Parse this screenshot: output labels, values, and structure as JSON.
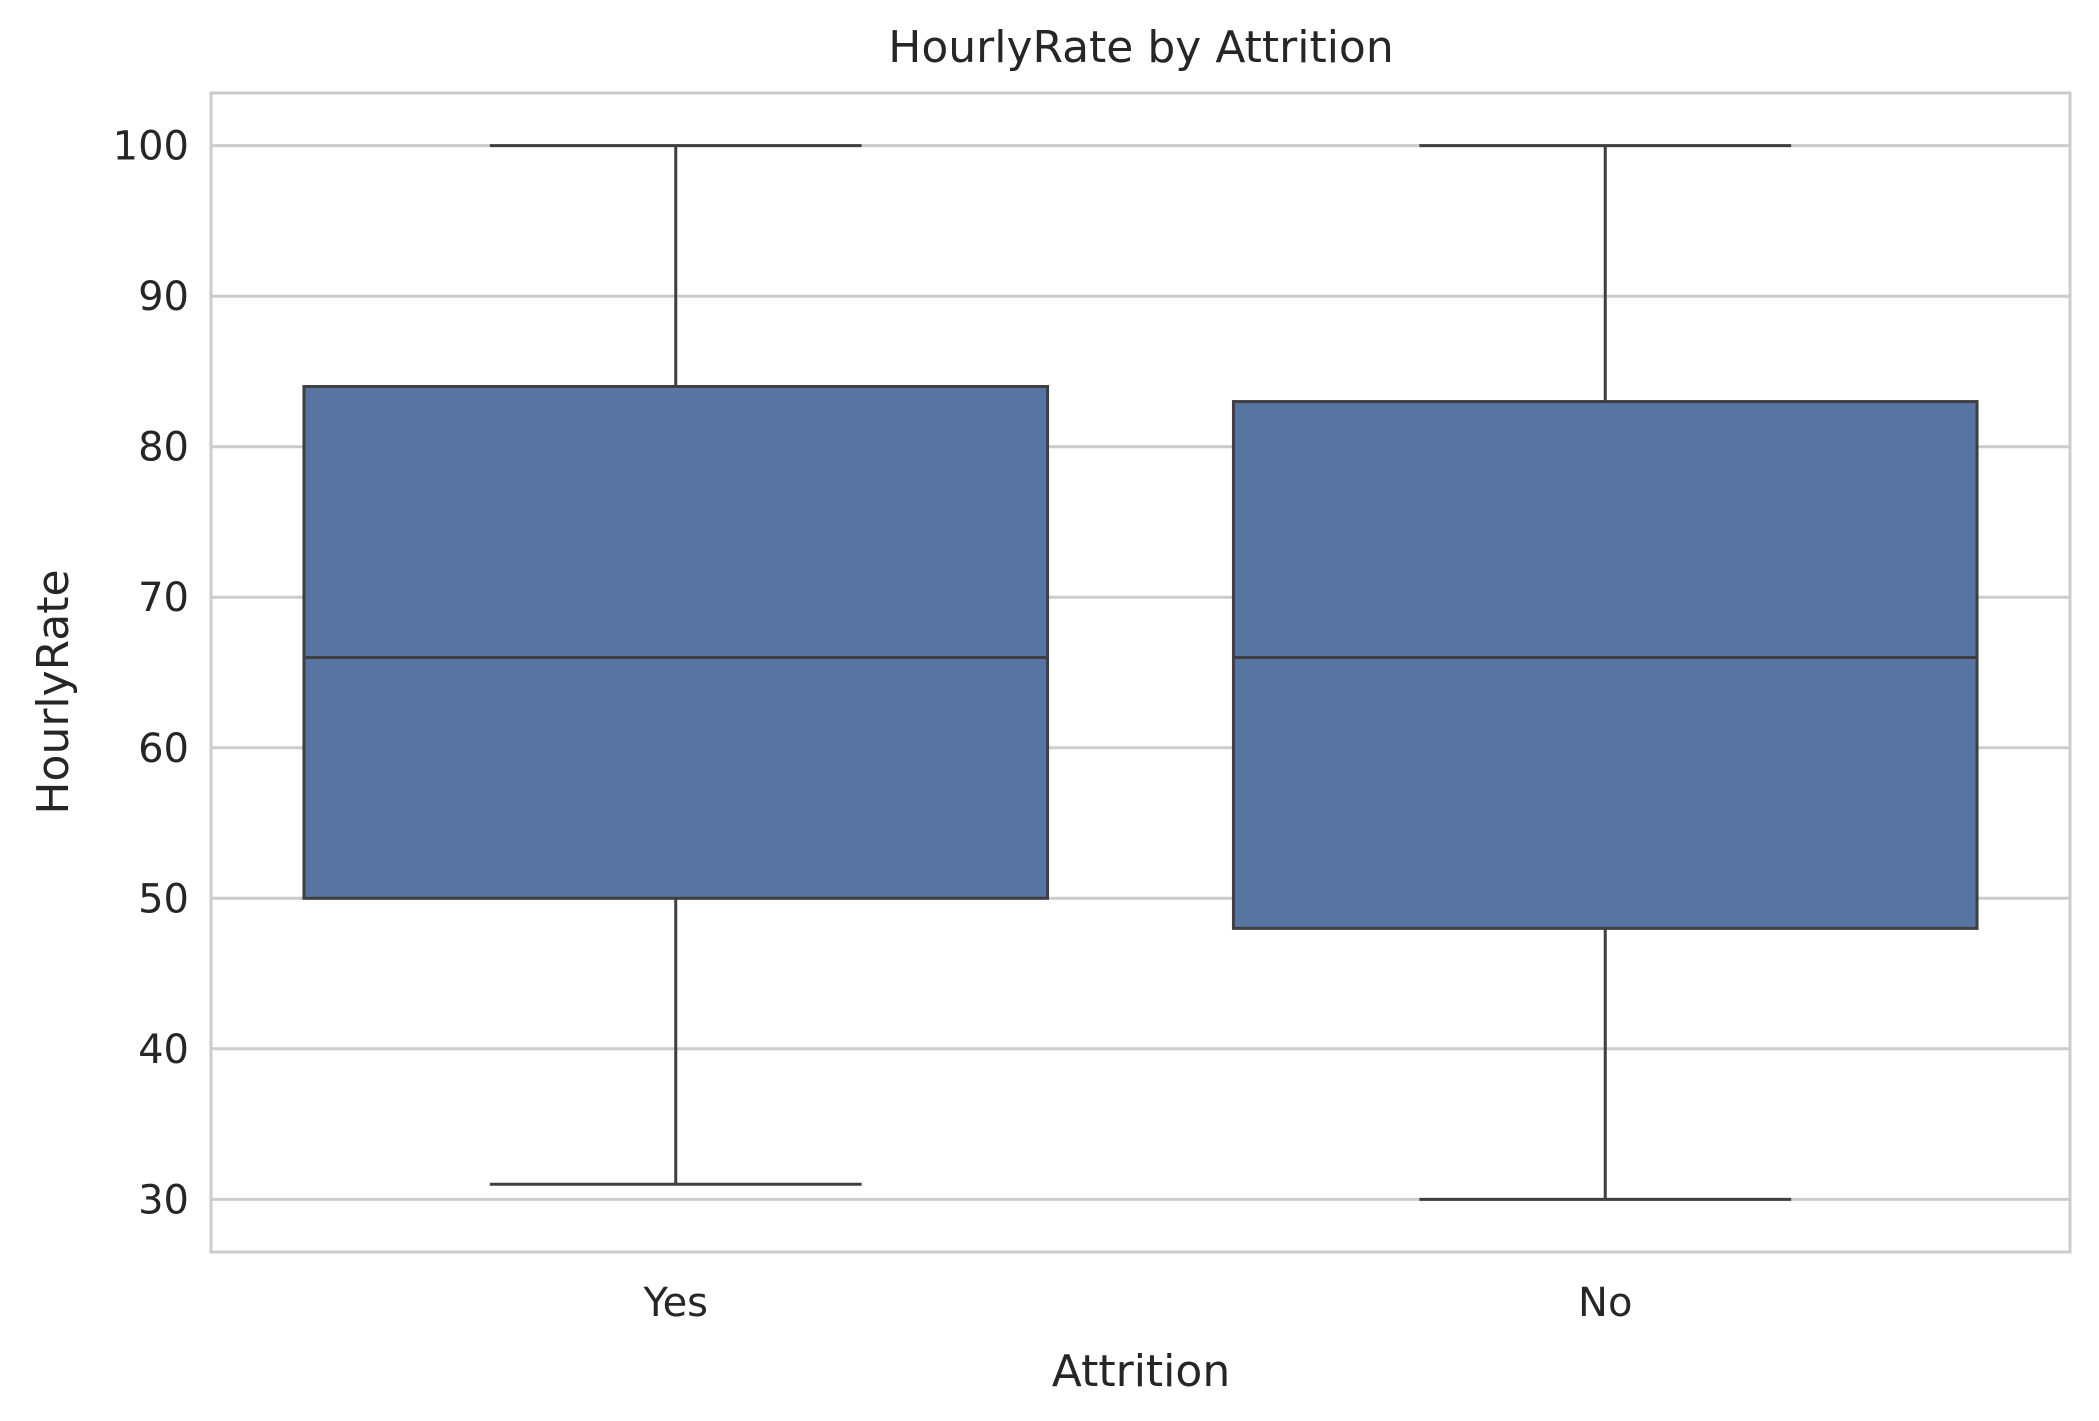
{
  "chart_data": {
    "type": "box",
    "title": "HourlyRate by Attrition",
    "xlabel": "Attrition",
    "ylabel": "HourlyRate",
    "categories": [
      "Yes",
      "No"
    ],
    "boxes": [
      {
        "category": "Yes",
        "min": 31,
        "q1": 50,
        "median": 66,
        "q3": 84,
        "max": 100
      },
      {
        "category": "No",
        "min": 30,
        "q1": 48,
        "median": 66,
        "q3": 83,
        "max": 100
      }
    ],
    "ylim": [
      26.5,
      103.5
    ],
    "yticks": [
      30,
      40,
      50,
      60,
      70,
      80,
      90,
      100
    ],
    "grid": "horizontal",
    "colors": {
      "box_fill": "#5874a3",
      "box_line": "#3f3f3f",
      "grid": "#cccccc",
      "frame": "#cccccc"
    }
  }
}
